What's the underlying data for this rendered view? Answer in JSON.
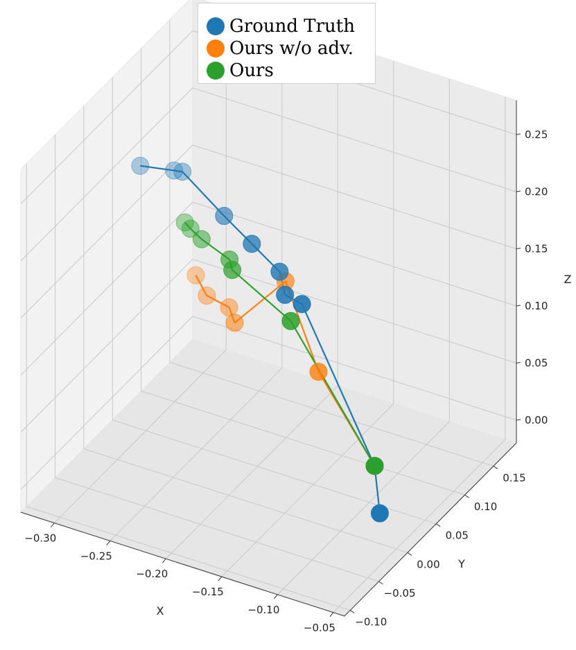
{
  "chart_data": {
    "type": "scatter",
    "projection": "3d",
    "xlabel": "X",
    "ylabel": "Y",
    "zlabel": "Z",
    "xlim": [
      -0.33,
      -0.04
    ],
    "ylim": [
      -0.11,
      0.19
    ],
    "zlim": [
      -0.02,
      0.28
    ],
    "xticks": [
      -0.3,
      -0.25,
      -0.2,
      -0.15,
      -0.1,
      -0.05
    ],
    "xtick_labels": [
      "−0.30",
      "−0.25",
      "−0.20",
      "−0.15",
      "−0.10",
      "−0.05"
    ],
    "yticks": [
      -0.1,
      -0.05,
      0.0,
      0.05,
      0.1,
      0.15
    ],
    "ytick_labels": [
      "−0.10",
      "−0.05",
      "0.00",
      "0.05",
      "0.10",
      "0.15"
    ],
    "zticks": [
      0.0,
      0.05,
      0.1,
      0.15,
      0.2,
      0.25
    ],
    "ztick_labels": [
      "0.00",
      "0.05",
      "0.10",
      "0.15",
      "0.20",
      "0.25"
    ],
    "grid": true,
    "legend_position": "top-center",
    "series": [
      {
        "name": "Ground Truth",
        "color": "#1f77b4",
        "points": [
          [
            -0.3,
            0.04,
            0.217
          ],
          [
            -0.28,
            0.06,
            0.209
          ],
          [
            -0.275,
            0.065,
            0.207
          ],
          [
            -0.23,
            0.05,
            0.19
          ],
          [
            -0.2,
            0.04,
            0.18
          ],
          [
            -0.17,
            0.03,
            0.17
          ],
          [
            -0.16,
            0.02,
            0.158
          ],
          [
            -0.15,
            0.03,
            0.148
          ],
          [
            -0.09,
            0.04,
            0.02
          ],
          [
            -0.07,
            0.01,
            0.0
          ]
        ],
        "alphas": [
          0.35,
          0.35,
          0.4,
          0.6,
          0.75,
          0.8,
          0.85,
          0.9,
          0.95,
          1.0
        ]
      },
      {
        "name": "Ours w/o adv.",
        "color": "#ff7f0e",
        "points": [
          [
            -0.24,
            0.02,
            0.15
          ],
          [
            -0.225,
            0.01,
            0.142
          ],
          [
            -0.205,
            0.01,
            0.138
          ],
          [
            -0.2,
            0.01,
            0.126
          ],
          [
            -0.175,
            0.05,
            0.15
          ],
          [
            -0.13,
            0.02,
            0.1
          ],
          [
            -0.09,
            0.04,
            0.02
          ]
        ],
        "alphas": [
          0.35,
          0.4,
          0.45,
          0.55,
          0.65,
          0.8,
          1.0
        ]
      },
      {
        "name": "Ours",
        "color": "#2ca02c",
        "points": [
          [
            -0.26,
            0.04,
            0.18
          ],
          [
            -0.255,
            0.04,
            0.176
          ],
          [
            -0.245,
            0.04,
            0.17
          ],
          [
            -0.22,
            0.04,
            0.16
          ],
          [
            -0.215,
            0.035,
            0.155
          ],
          [
            -0.16,
            0.03,
            0.13
          ],
          [
            -0.09,
            0.04,
            0.02
          ]
        ],
        "alphas": [
          0.4,
          0.45,
          0.5,
          0.6,
          0.7,
          0.85,
          1.0
        ]
      }
    ]
  }
}
